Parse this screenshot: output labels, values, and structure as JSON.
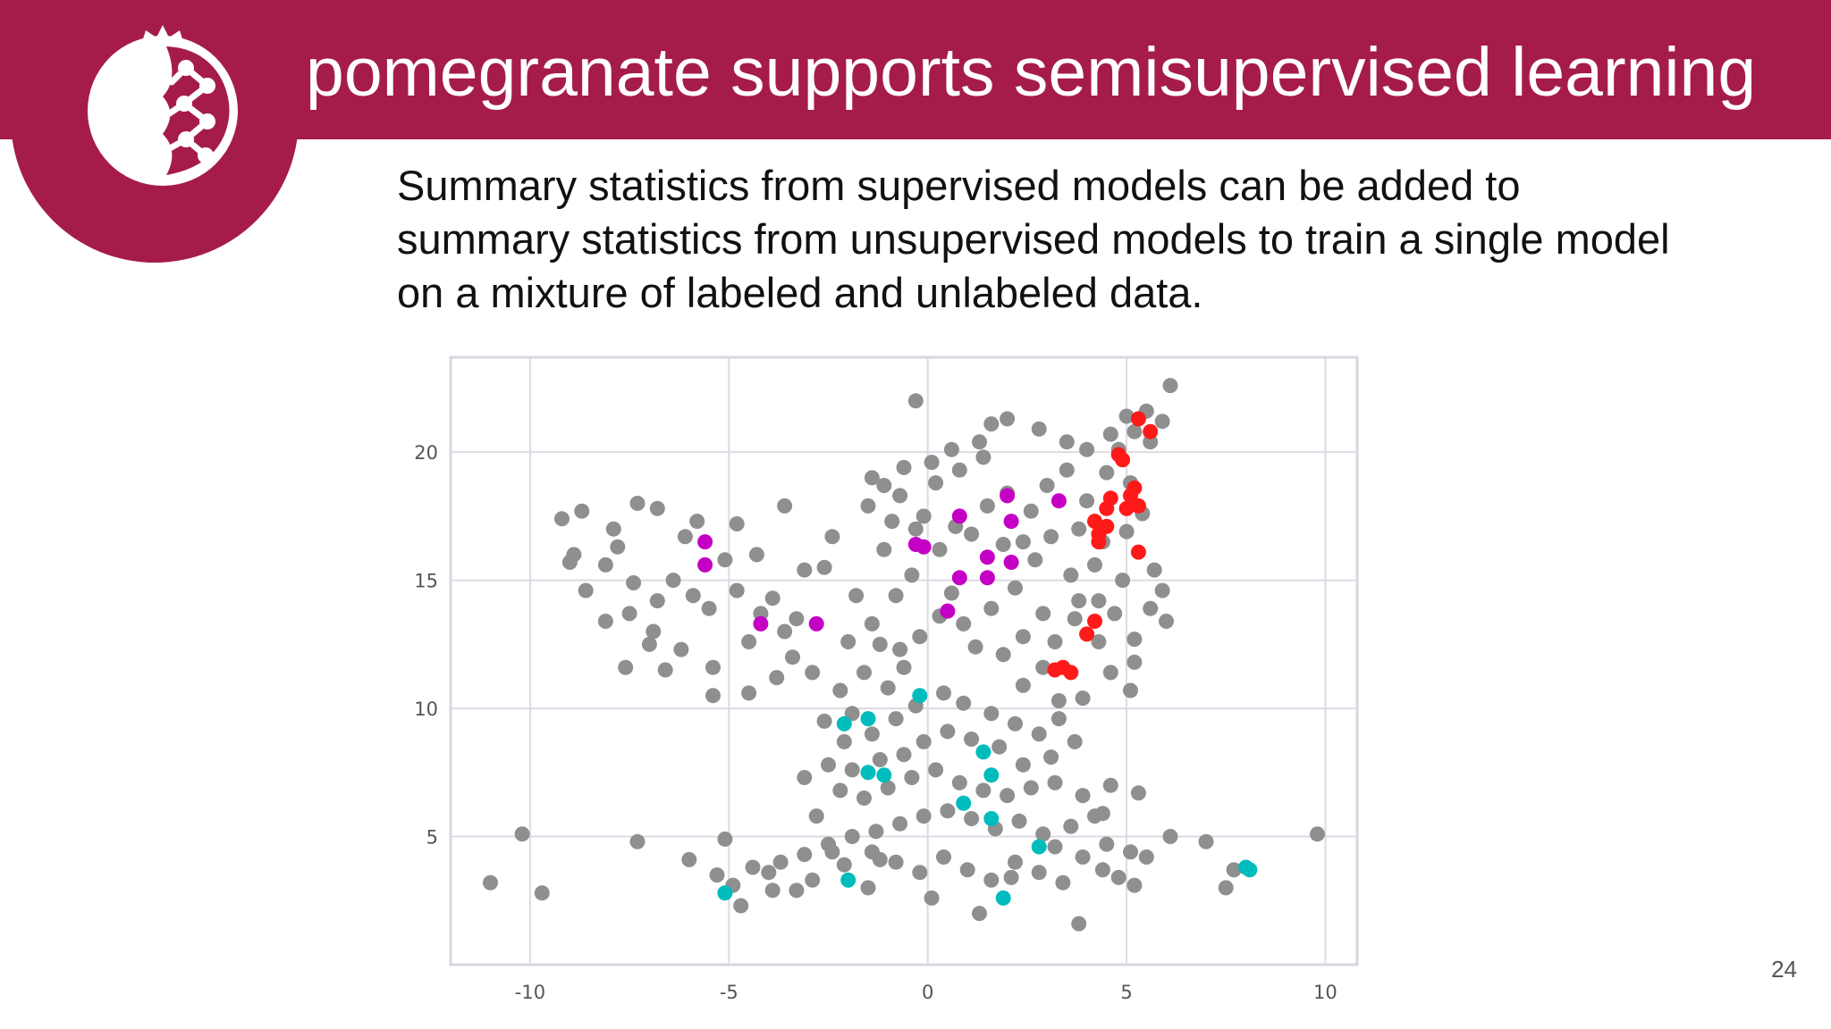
{
  "slide": {
    "title": "pomegranate supports semisupervised learning",
    "body_lines": [
      "Summary statistics from supervised models can be added to",
      "summary statistics from unsupervised models to train a single model",
      "on a mixture of labeled and unlabeled data."
    ],
    "page_number": "24",
    "logo_icon": "pomegranate-logo-icon",
    "colors": {
      "brand": "#a61c48",
      "text": "#111111"
    }
  },
  "chart_data": {
    "type": "scatter",
    "title": "",
    "xlabel": "",
    "ylabel": "",
    "xlim": [
      -12,
      10.8
    ],
    "ylim": [
      0.0,
      23.7
    ],
    "x_ticks": [
      "-10",
      "-5",
      "0",
      "5",
      "10"
    ],
    "x_tick_values": [
      -10,
      -5,
      0,
      5,
      10
    ],
    "y_ticks": [
      "5",
      "10",
      "15",
      "20"
    ],
    "y_tick_values": [
      5,
      10,
      15,
      20
    ],
    "grid": true,
    "legend": "none",
    "series": [
      {
        "color": "#8f8f8f",
        "role": "unlabeled",
        "points": [
          [
            -10.2,
            5.1
          ],
          [
            -11.0,
            3.2
          ],
          [
            -9.7,
            2.8
          ],
          [
            -7.3,
            4.8
          ],
          [
            -5.1,
            4.9
          ],
          [
            -6.0,
            4.1
          ],
          [
            -4.0,
            3.6
          ],
          [
            -3.3,
            2.9
          ],
          [
            -4.7,
            2.3
          ],
          [
            -2.4,
            4.4
          ],
          [
            -1.5,
            3.0
          ],
          [
            -1.2,
            4.1
          ],
          [
            0.1,
            2.6
          ],
          [
            1.3,
            2.0
          ],
          [
            2.1,
            3.4
          ],
          [
            3.2,
            4.6
          ],
          [
            3.8,
            1.6
          ],
          [
            4.4,
            3.7
          ],
          [
            5.2,
            3.1
          ],
          [
            5.5,
            4.2
          ],
          [
            6.1,
            5.0
          ],
          [
            7.0,
            4.8
          ],
          [
            7.5,
            3.0
          ],
          [
            7.7,
            3.7
          ],
          [
            9.8,
            5.1
          ],
          [
            5.3,
            6.7
          ],
          [
            4.4,
            5.9
          ],
          [
            -2.8,
            5.8
          ],
          [
            -4.5,
            10.6
          ],
          [
            -3.8,
            11.2
          ],
          [
            -7.6,
            11.6
          ],
          [
            -9.2,
            17.4
          ],
          [
            -8.7,
            17.7
          ],
          [
            -7.3,
            18.0
          ],
          [
            -6.8,
            17.8
          ],
          [
            -9.0,
            15.7
          ],
          [
            -8.1,
            15.6
          ],
          [
            -7.8,
            16.3
          ],
          [
            -8.6,
            14.6
          ],
          [
            -7.4,
            14.9
          ],
          [
            -6.8,
            14.2
          ],
          [
            -6.4,
            15.0
          ],
          [
            -6.9,
            13.0
          ],
          [
            -6.2,
            12.3
          ],
          [
            -5.5,
            13.9
          ],
          [
            -5.4,
            11.6
          ],
          [
            -4.8,
            14.6
          ],
          [
            -4.5,
            12.6
          ],
          [
            -3.9,
            14.3
          ],
          [
            -3.6,
            13.0
          ],
          [
            -3.4,
            12.0
          ],
          [
            -4.3,
            16.0
          ],
          [
            -4.8,
            17.2
          ],
          [
            -3.6,
            17.9
          ],
          [
            -2.4,
            16.7
          ],
          [
            -2.6,
            15.5
          ],
          [
            -1.8,
            14.4
          ],
          [
            -1.4,
            13.3
          ],
          [
            -2.0,
            12.6
          ],
          [
            -2.9,
            11.4
          ],
          [
            -3.1,
            15.4
          ],
          [
            -6.1,
            16.7
          ],
          [
            -5.1,
            15.8
          ],
          [
            -5.9,
            14.4
          ],
          [
            -7.0,
            12.5
          ],
          [
            -8.1,
            13.4
          ],
          [
            -4.2,
            13.7
          ],
          [
            -3.3,
            13.5
          ],
          [
            -2.2,
            10.7
          ],
          [
            -1.6,
            11.4
          ],
          [
            -1.2,
            12.5
          ],
          [
            -0.7,
            12.3
          ],
          [
            -0.2,
            12.8
          ],
          [
            0.3,
            13.6
          ],
          [
            -0.8,
            14.4
          ],
          [
            -0.4,
            15.2
          ],
          [
            0.6,
            14.5
          ],
          [
            0.9,
            13.3
          ],
          [
            1.2,
            12.4
          ],
          [
            1.9,
            12.1
          ],
          [
            2.4,
            12.8
          ],
          [
            1.6,
            13.9
          ],
          [
            2.2,
            14.7
          ],
          [
            2.9,
            13.7
          ],
          [
            3.2,
            12.6
          ],
          [
            3.7,
            13.5
          ],
          [
            4.3,
            12.6
          ],
          [
            4.7,
            13.7
          ],
          [
            5.2,
            12.7
          ],
          [
            5.6,
            13.9
          ],
          [
            5.9,
            14.6
          ],
          [
            6.0,
            13.4
          ],
          [
            5.7,
            15.4
          ],
          [
            4.9,
            15.0
          ],
          [
            4.2,
            15.6
          ],
          [
            3.6,
            15.2
          ],
          [
            2.7,
            15.8
          ],
          [
            1.9,
            16.4
          ],
          [
            1.1,
            16.8
          ],
          [
            0.3,
            16.2
          ],
          [
            -0.3,
            17.0
          ],
          [
            -0.9,
            17.3
          ],
          [
            -1.5,
            17.9
          ],
          [
            -0.7,
            18.3
          ],
          [
            0.2,
            18.8
          ],
          [
            0.8,
            19.3
          ],
          [
            1.4,
            19.8
          ],
          [
            2.0,
            18.4
          ],
          [
            2.6,
            17.7
          ],
          [
            3.0,
            18.7
          ],
          [
            3.5,
            19.3
          ],
          [
            4.0,
            18.1
          ],
          [
            4.5,
            19.2
          ],
          [
            4.8,
            20.1
          ],
          [
            5.2,
            20.8
          ],
          [
            5.6,
            20.4
          ],
          [
            5.9,
            21.2
          ],
          [
            6.1,
            22.6
          ],
          [
            5.5,
            21.6
          ],
          [
            5.0,
            21.4
          ],
          [
            4.6,
            20.7
          ],
          [
            4.0,
            20.1
          ],
          [
            3.5,
            20.4
          ],
          [
            2.8,
            20.9
          ],
          [
            2.0,
            21.3
          ],
          [
            1.6,
            21.1
          ],
          [
            1.3,
            20.4
          ],
          [
            0.6,
            20.1
          ],
          [
            0.1,
            19.6
          ],
          [
            -0.6,
            19.4
          ],
          [
            -1.1,
            18.7
          ],
          [
            -0.1,
            17.5
          ],
          [
            0.7,
            17.1
          ],
          [
            1.5,
            17.9
          ],
          [
            2.4,
            16.5
          ],
          [
            3.1,
            16.7
          ],
          [
            3.8,
            17.0
          ],
          [
            4.4,
            16.5
          ],
          [
            5.0,
            16.9
          ],
          [
            5.4,
            17.6
          ],
          [
            5.1,
            18.8
          ],
          [
            4.3,
            14.2
          ],
          [
            3.8,
            14.2
          ],
          [
            2.9,
            11.6
          ],
          [
            2.4,
            10.9
          ],
          [
            3.3,
            10.3
          ],
          [
            3.9,
            10.4
          ],
          [
            4.6,
            11.4
          ],
          [
            5.2,
            11.8
          ],
          [
            5.1,
            10.7
          ],
          [
            -0.6,
            11.6
          ],
          [
            -1.0,
            10.8
          ],
          [
            -1.9,
            9.8
          ],
          [
            -2.6,
            9.5
          ],
          [
            -2.1,
            8.7
          ],
          [
            -1.4,
            9.0
          ],
          [
            -0.8,
            9.6
          ],
          [
            -0.3,
            10.1
          ],
          [
            0.4,
            10.6
          ],
          [
            0.9,
            10.2
          ],
          [
            1.6,
            9.8
          ],
          [
            2.2,
            9.4
          ],
          [
            2.8,
            9.0
          ],
          [
            3.3,
            9.6
          ],
          [
            3.7,
            8.7
          ],
          [
            3.1,
            8.1
          ],
          [
            2.4,
            7.8
          ],
          [
            1.8,
            8.5
          ],
          [
            1.1,
            8.8
          ],
          [
            0.5,
            9.1
          ],
          [
            -0.1,
            8.7
          ],
          [
            -0.6,
            8.2
          ],
          [
            -1.2,
            8.0
          ],
          [
            -1.9,
            7.6
          ],
          [
            -2.5,
            7.8
          ],
          [
            -3.1,
            7.3
          ],
          [
            -2.2,
            6.8
          ],
          [
            -1.6,
            6.5
          ],
          [
            -1.0,
            6.9
          ],
          [
            -0.4,
            7.3
          ],
          [
            0.2,
            7.6
          ],
          [
            0.8,
            7.1
          ],
          [
            1.4,
            6.8
          ],
          [
            2.0,
            6.6
          ],
          [
            2.6,
            6.9
          ],
          [
            3.2,
            7.1
          ],
          [
            3.9,
            6.6
          ],
          [
            4.6,
            7.0
          ],
          [
            4.2,
            5.8
          ],
          [
            3.6,
            5.4
          ],
          [
            2.9,
            5.1
          ],
          [
            2.3,
            5.6
          ],
          [
            1.7,
            5.3
          ],
          [
            1.1,
            5.7
          ],
          [
            0.5,
            6.0
          ],
          [
            -0.1,
            5.8
          ],
          [
            -0.7,
            5.5
          ],
          [
            -1.3,
            5.2
          ],
          [
            -1.9,
            5.0
          ],
          [
            -2.5,
            4.7
          ],
          [
            -3.1,
            4.3
          ],
          [
            -3.7,
            4.0
          ],
          [
            -4.4,
            3.8
          ],
          [
            -5.3,
            3.5
          ],
          [
            -4.9,
            3.1
          ],
          [
            -3.9,
            2.9
          ],
          [
            -2.9,
            3.3
          ],
          [
            -2.1,
            3.9
          ],
          [
            -1.4,
            4.4
          ],
          [
            -0.8,
            4.0
          ],
          [
            -0.2,
            3.6
          ],
          [
            0.4,
            4.2
          ],
          [
            1.0,
            3.7
          ],
          [
            1.6,
            3.3
          ],
          [
            2.2,
            4.0
          ],
          [
            2.8,
            3.6
          ],
          [
            3.4,
            3.2
          ],
          [
            3.9,
            4.2
          ],
          [
            4.5,
            4.7
          ],
          [
            5.1,
            4.4
          ],
          [
            4.8,
            3.4
          ],
          [
            -0.3,
            22.0
          ],
          [
            -1.4,
            19.0
          ],
          [
            -1.1,
            16.2
          ],
          [
            -5.4,
            10.5
          ],
          [
            -7.5,
            13.7
          ],
          [
            -6.6,
            11.5
          ],
          [
            -5.8,
            17.3
          ],
          [
            -8.9,
            16.0
          ],
          [
            -7.9,
            17.0
          ]
        ]
      },
      {
        "color": "#c400c4",
        "role": "labeled class 1",
        "points": [
          [
            -5.6,
            16.5
          ],
          [
            -5.6,
            15.6
          ],
          [
            -4.2,
            13.3
          ],
          [
            -2.8,
            13.3
          ],
          [
            -0.3,
            16.4
          ],
          [
            -0.1,
            16.3
          ],
          [
            0.8,
            17.5
          ],
          [
            2.0,
            18.3
          ],
          [
            2.1,
            17.3
          ],
          [
            3.3,
            18.1
          ],
          [
            1.5,
            15.9
          ],
          [
            2.1,
            15.7
          ],
          [
            0.8,
            15.1
          ],
          [
            1.5,
            15.1
          ],
          [
            0.5,
            13.8
          ]
        ]
      },
      {
        "color": "#ff1a1a",
        "role": "labeled class 2",
        "points": [
          [
            5.3,
            21.3
          ],
          [
            5.6,
            20.8
          ],
          [
            4.8,
            19.9
          ],
          [
            4.9,
            19.7
          ],
          [
            5.2,
            18.6
          ],
          [
            5.1,
            18.3
          ],
          [
            4.6,
            18.2
          ],
          [
            4.5,
            17.8
          ],
          [
            5.0,
            17.8
          ],
          [
            5.3,
            17.9
          ],
          [
            4.2,
            17.3
          ],
          [
            4.5,
            17.1
          ],
          [
            4.3,
            16.8
          ],
          [
            4.3,
            16.5
          ],
          [
            5.3,
            16.1
          ],
          [
            4.2,
            13.4
          ],
          [
            4.0,
            12.9
          ],
          [
            3.2,
            11.5
          ],
          [
            3.4,
            11.6
          ],
          [
            3.6,
            11.4
          ]
        ]
      },
      {
        "color": "#00bcbc",
        "role": "labeled class 3",
        "points": [
          [
            -0.2,
            10.5
          ],
          [
            -2.1,
            9.4
          ],
          [
            -1.5,
            9.6
          ],
          [
            -1.5,
            7.5
          ],
          [
            -1.1,
            7.4
          ],
          [
            1.4,
            8.3
          ],
          [
            1.6,
            7.4
          ],
          [
            0.9,
            6.3
          ],
          [
            1.6,
            5.7
          ],
          [
            2.8,
            4.6
          ],
          [
            8.0,
            3.8
          ],
          [
            8.1,
            3.7
          ],
          [
            -5.1,
            2.8
          ],
          [
            -2.0,
            3.3
          ],
          [
            1.9,
            2.6
          ]
        ]
      }
    ]
  }
}
